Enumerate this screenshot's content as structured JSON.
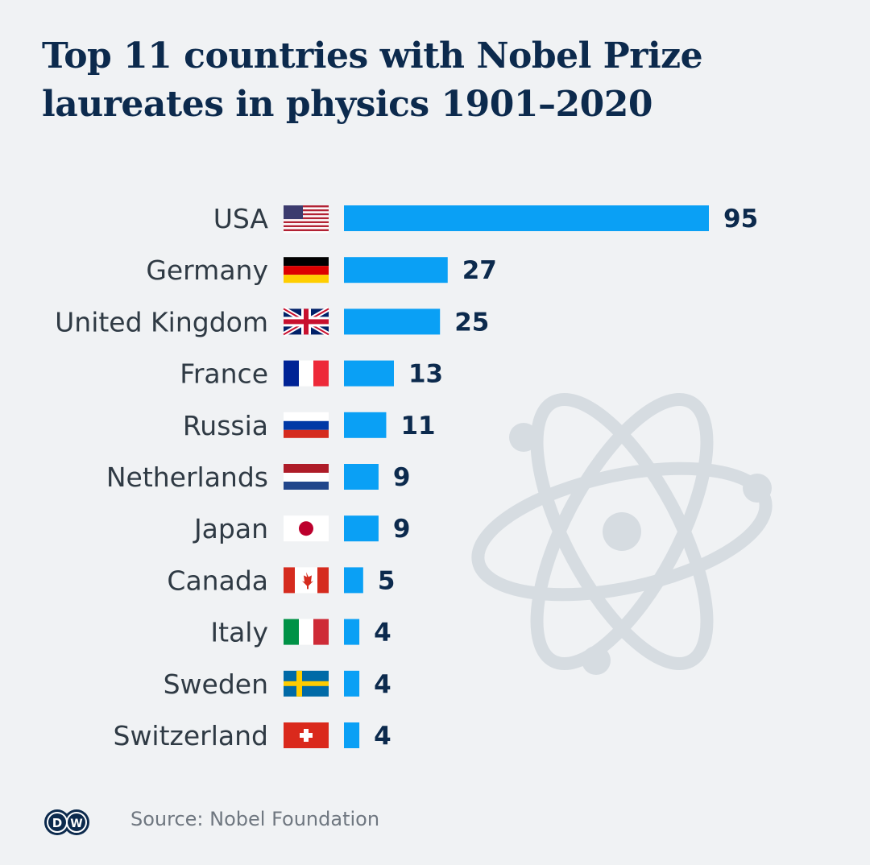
{
  "title": "Top 11 countries with Nobel Prize laureates in physics 1901–2020",
  "source": "Source: Nobel Foundation",
  "logo_text": "DW",
  "colors": {
    "bar": "#0aa0f5",
    "value": "#0c2a4d",
    "label": "#2f3a44",
    "background": "#f0f2f4",
    "watermark": "#d6dce1"
  },
  "chart_data": {
    "type": "bar",
    "orientation": "horizontal",
    "title": "Top 11 countries with Nobel Prize laureates in physics 1901–2020",
    "xlabel": "",
    "ylabel": "",
    "xlim": [
      0,
      95
    ],
    "grid": false,
    "categories": [
      "USA",
      "Germany",
      "United Kingdom",
      "France",
      "Russia",
      "Netherlands",
      "Japan",
      "Canada",
      "Italy",
      "Sweden",
      "Switzerland"
    ],
    "values": [
      95,
      27,
      25,
      13,
      11,
      9,
      9,
      5,
      4,
      4,
      4
    ],
    "flags": [
      "us-flag-icon",
      "de-flag-icon",
      "gb-flag-icon",
      "fr-flag-icon",
      "ru-flag-icon",
      "nl-flag-icon",
      "jp-flag-icon",
      "ca-flag-icon",
      "it-flag-icon",
      "se-flag-icon",
      "ch-flag-icon"
    ]
  }
}
